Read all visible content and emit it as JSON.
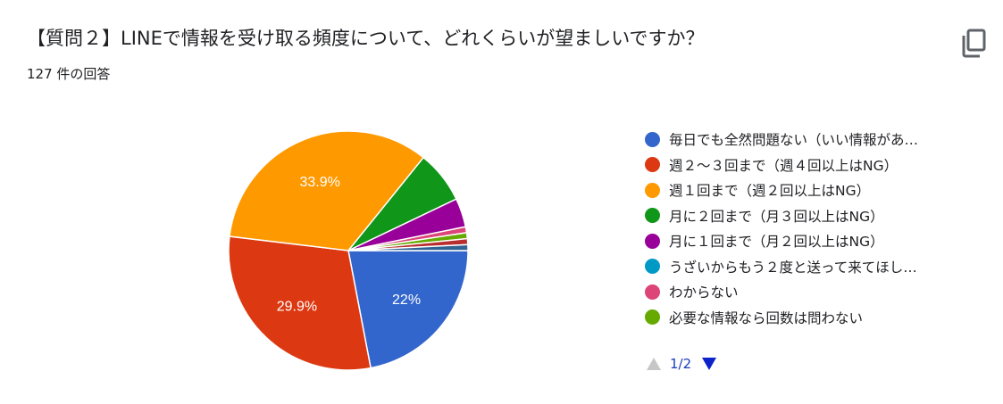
{
  "header": {
    "title": "【質問２】LINEで情報を受け取る頻度について、どれくらいが望ましいですか？",
    "response_count": "127 件の回答",
    "copy_icon": "copy-icon"
  },
  "chart_data": {
    "type": "pie",
    "title": "【質問２】LINEで情報を受け取る頻度について、どれくらいが望ましいですか？",
    "total_responses": 127,
    "start_angle_deg": 90,
    "direction": "clockwise",
    "slices": [
      {
        "label": "毎日でも全然問題ない（いい情報があ…",
        "value": 22.0,
        "display": "22%",
        "color": "#3366cc"
      },
      {
        "label": "週２～３回まで（週４回以上はNG）",
        "value": 29.9,
        "display": "29.9%",
        "color": "#dc3912"
      },
      {
        "label": "週１回まで（週２回以上はNG）",
        "value": 33.9,
        "display": "33.9%",
        "color": "#ff9900"
      },
      {
        "label": "月に２回まで（月３回以上はNG）",
        "value": 7.1,
        "display": "",
        "color": "#109618"
      },
      {
        "label": "月に１回まで（月２回以上はNG）",
        "value": 3.9,
        "display": "",
        "color": "#990099"
      },
      {
        "label": "うざいからもう２度と送って来てほし…",
        "value": 0.0,
        "display": "",
        "color": "#0099c6"
      },
      {
        "label": "わからない",
        "value": 0.8,
        "display": "",
        "color": "#dd4477"
      },
      {
        "label": "必要な情報なら回数は問わない",
        "value": 0.8,
        "display": "",
        "color": "#66aa00"
      },
      {
        "label": "",
        "value": 0.8,
        "display": "",
        "color": "#b82e2e"
      },
      {
        "label": "",
        "value": 0.8,
        "display": "",
        "color": "#316395"
      }
    ],
    "legend_position": "right"
  },
  "legend": {
    "items": [
      {
        "label": "毎日でも全然問題ない（いい情報があ…",
        "color": "#3366cc"
      },
      {
        "label": "週２～３回まで（週４回以上はNG）",
        "color": "#dc3912"
      },
      {
        "label": "週１回まで（週２回以上はNG）",
        "color": "#ff9900"
      },
      {
        "label": "月に２回まで（月３回以上はNG）",
        "color": "#109618"
      },
      {
        "label": "月に１回まで（月２回以上はNG）",
        "color": "#990099"
      },
      {
        "label": "うざいからもう２度と送って来てほし…",
        "color": "#0099c6"
      },
      {
        "label": "わからない",
        "color": "#dd4477"
      },
      {
        "label": "必要な情報なら回数は問わない",
        "color": "#66aa00"
      }
    ]
  },
  "pager": {
    "text": "1/2",
    "prev_icon": "triangle-up-icon",
    "next_icon": "triangle-down-icon",
    "prev_color": "#c6c6c6",
    "next_color": "#0b23c9"
  }
}
